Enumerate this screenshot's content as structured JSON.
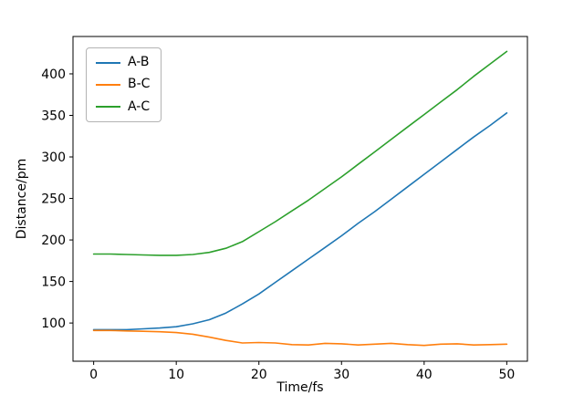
{
  "figure": {
    "background": "#ffffff"
  },
  "chart_data": {
    "type": "line",
    "title": "",
    "xlabel": "Time/fs",
    "ylabel": "Distance/pm",
    "xlim": [
      -2.5,
      52.5
    ],
    "ylim": [
      54,
      445
    ],
    "x_ticks": [
      0,
      10,
      20,
      30,
      40,
      50
    ],
    "y_ticks": [
      100,
      150,
      200,
      250,
      300,
      350,
      400
    ],
    "grid": false,
    "legend_position": "upper-left",
    "x": [
      0,
      2,
      4,
      6,
      8,
      10,
      12,
      14,
      16,
      18,
      20,
      22,
      24,
      26,
      28,
      30,
      32,
      34,
      36,
      38,
      40,
      42,
      44,
      46,
      48,
      50
    ],
    "series": [
      {
        "name": "A-B",
        "color": "#1f77b4",
        "values": [
          92,
          92,
          92,
          93,
          94,
          95.5,
          99,
          104,
          112,
          123,
          135,
          149,
          163,
          177,
          191,
          205,
          220,
          234,
          249,
          264,
          279,
          294,
          309,
          324,
          338,
          353
        ]
      },
      {
        "name": "B-C",
        "color": "#ff7f0e",
        "values": [
          91,
          91,
          90.5,
          90,
          89.5,
          88.5,
          86.5,
          83,
          79,
          76,
          76.5,
          76,
          74,
          73.5,
          75.5,
          75,
          73.5,
          74.5,
          75.5,
          74,
          73,
          74.5,
          75,
          73.5,
          74,
          74.5
        ]
      },
      {
        "name": "A-C",
        "color": "#2ca02c",
        "values": [
          183,
          183,
          182.5,
          182,
          181.5,
          181.5,
          182.5,
          185,
          190,
          198,
          210,
          222,
          235,
          248,
          262,
          276,
          291,
          306,
          321,
          336,
          351,
          366,
          381,
          397,
          412,
          427
        ]
      }
    ]
  }
}
